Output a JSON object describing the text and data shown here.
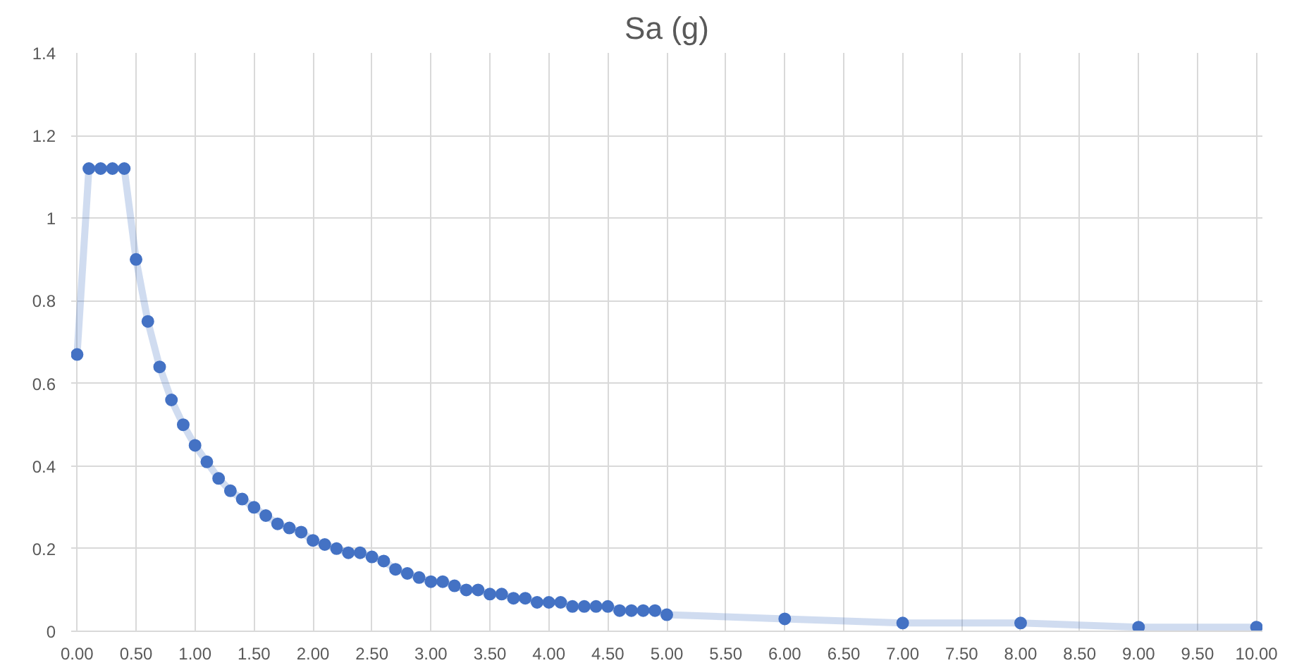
{
  "chart_data": {
    "type": "line",
    "title": "Sa (g)",
    "x": [
      0,
      0.1,
      0.2,
      0.3,
      0.4,
      0.5,
      0.6,
      0.7,
      0.8,
      0.9,
      1.0,
      1.1,
      1.2,
      1.3,
      1.4,
      1.5,
      1.6,
      1.7,
      1.8,
      1.9,
      2.0,
      2.1,
      2.2,
      2.3,
      2.4,
      2.5,
      2.6,
      2.7,
      2.8,
      2.9,
      3.0,
      3.1,
      3.2,
      3.3,
      3.4,
      3.5,
      3.6,
      3.7,
      3.8,
      3.9,
      4.0,
      4.1,
      4.2,
      4.3,
      4.4,
      4.5,
      4.6,
      4.7,
      4.8,
      4.9,
      5.0,
      6,
      7,
      8,
      9,
      10
    ],
    "series": [
      {
        "color": "#4472c4",
        "values": [
          0.67,
          1.12,
          1.12,
          1.12,
          1.12,
          0.9,
          0.75,
          0.64,
          0.56,
          0.5,
          0.45,
          0.41,
          0.37,
          0.34,
          0.32,
          0.3,
          0.28,
          0.26,
          0.25,
          0.24,
          0.22,
          0.21,
          0.2,
          0.19,
          0.19,
          0.18,
          0.17,
          0.15,
          0.14,
          0.13,
          0.12,
          0.12,
          0.11,
          0.1,
          0.1,
          0.09,
          0.09,
          0.08,
          0.08,
          0.07,
          0.07,
          0.07,
          0.06,
          0.06,
          0.06,
          0.06,
          0.05,
          0.05,
          0.05,
          0.05,
          0.04,
          0.03,
          0.02,
          0.02,
          0.01,
          0.01
        ]
      }
    ],
    "xlim": [
      -0.05,
      10.05
    ],
    "xticks": [
      {
        "value": 0,
        "label": "0.00"
      },
      {
        "value": 0.5,
        "label": "0.50"
      },
      {
        "value": 1,
        "label": "1.00"
      },
      {
        "value": 1.5,
        "label": "1.50"
      },
      {
        "value": 2,
        "label": "2.00"
      },
      {
        "value": 2.5,
        "label": "2.50"
      },
      {
        "value": 3,
        "label": "3.00"
      },
      {
        "value": 3.5,
        "label": "3.50"
      },
      {
        "value": 4,
        "label": "4.00"
      },
      {
        "value": 4.5,
        "label": "4.50"
      },
      {
        "value": 5,
        "label": "5.00"
      },
      {
        "value": 5.5,
        "label": "5.50"
      },
      {
        "value": 6,
        "label": "6.00"
      },
      {
        "value": 6.5,
        "label": "6.50"
      },
      {
        "value": 7,
        "label": "7.00"
      },
      {
        "value": 7.5,
        "label": "7.50"
      },
      {
        "value": 8,
        "label": "8.00"
      },
      {
        "value": 8.5,
        "label": "8.50"
      },
      {
        "value": 9,
        "label": "9.00"
      },
      {
        "value": 9.5,
        "label": "9.50"
      },
      {
        "value": 10,
        "label": "10.00"
      }
    ],
    "ylim": [
      0,
      1.4
    ],
    "yticks": [
      0,
      0.2,
      0.4,
      0.6,
      0.8,
      1,
      1.2,
      1.4
    ],
    "grid": true,
    "marker": "circle",
    "line_style": "solid"
  }
}
